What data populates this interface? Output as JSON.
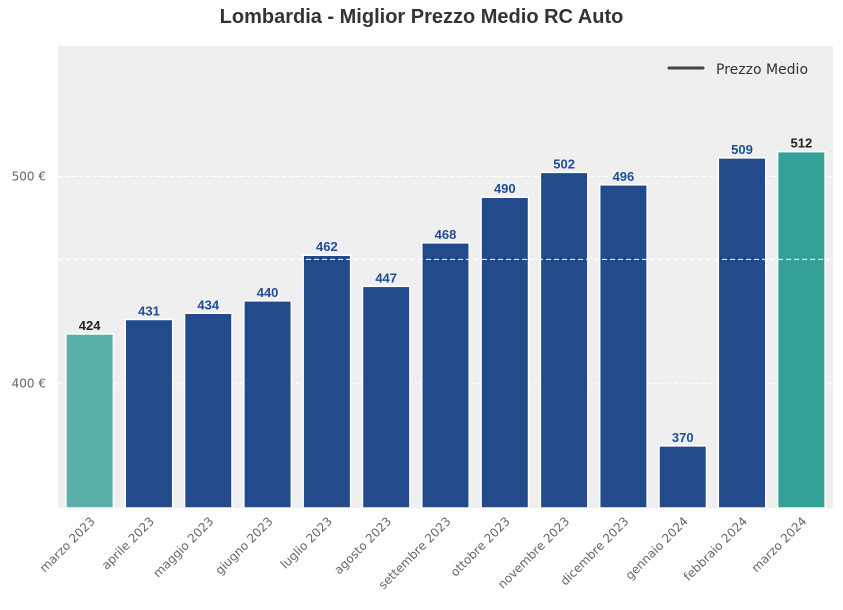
{
  "chart_data": {
    "type": "bar",
    "title": "Lombardia - Miglior Prezzo Medio RC Auto",
    "xlabel": "",
    "ylabel": "",
    "categories": [
      "marzo 2023",
      "aprile 2023",
      "maggio 2023",
      "giugno 2023",
      "luglio 2023",
      "agosto 2023",
      "settembre 2023",
      "ottobre 2023",
      "novembre 2023",
      "dicembre 2023",
      "gennaio 2024",
      "febbraio 2024",
      "marzo 2024"
    ],
    "values": [
      424,
      431,
      434,
      440,
      462,
      447,
      468,
      490,
      502,
      496,
      370,
      509,
      512
    ],
    "value_labels": [
      "424",
      "431",
      "434",
      "440",
      "462",
      "447",
      "468",
      "490",
      "502",
      "496",
      "370",
      "509",
      "512"
    ],
    "bar_colors": [
      "#5aafa9",
      "#234a8a",
      "#234a8a",
      "#234a8a",
      "#234a8a",
      "#234a8a",
      "#234a8a",
      "#234a8a",
      "#234a8a",
      "#234a8a",
      "#234a8a",
      "#234a8a",
      "#35a096"
    ],
    "label_colors": [
      "#222222",
      "#1f4e96",
      "#1f4e96",
      "#1f4e96",
      "#1f4e96",
      "#1f4e96",
      "#1f4e96",
      "#1f4e96",
      "#1f4e96",
      "#1f4e96",
      "#1f4e96",
      "#1f4e96",
      "#222222"
    ],
    "ylim": [
      340,
      563
    ],
    "yticks": [
      400,
      500
    ],
    "ytick_labels": [
      "400 €",
      "500 €"
    ],
    "average_line": 460,
    "grid": true,
    "legend": {
      "label": "Prezzo Medio",
      "placement": "top-right"
    },
    "colors": {
      "plot_background": "#efefef",
      "average_line": "#ffffff"
    }
  }
}
